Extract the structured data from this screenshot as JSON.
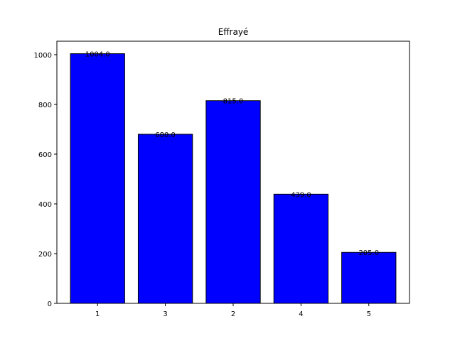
{
  "chart_data": {
    "type": "bar",
    "title": "Effrayé",
    "xlabel": "",
    "ylabel": "",
    "categories": [
      "1",
      "3",
      "2",
      "4",
      "5"
    ],
    "values": [
      1004.0,
      680.0,
      815.0,
      439.0,
      205.0
    ],
    "data_labels": [
      "1004.0",
      "680.0",
      "815.0",
      "439.0",
      "205.0"
    ],
    "ylim": [
      0,
      1054.2
    ],
    "yticks": [
      0,
      200,
      400,
      600,
      800,
      1000
    ],
    "ytick_labels": [
      "0",
      "200",
      "400",
      "600",
      "800",
      "1000"
    ],
    "bar_color": "#0000ff",
    "bar_edge_color": "#000000",
    "grid": false,
    "legend": "none"
  }
}
